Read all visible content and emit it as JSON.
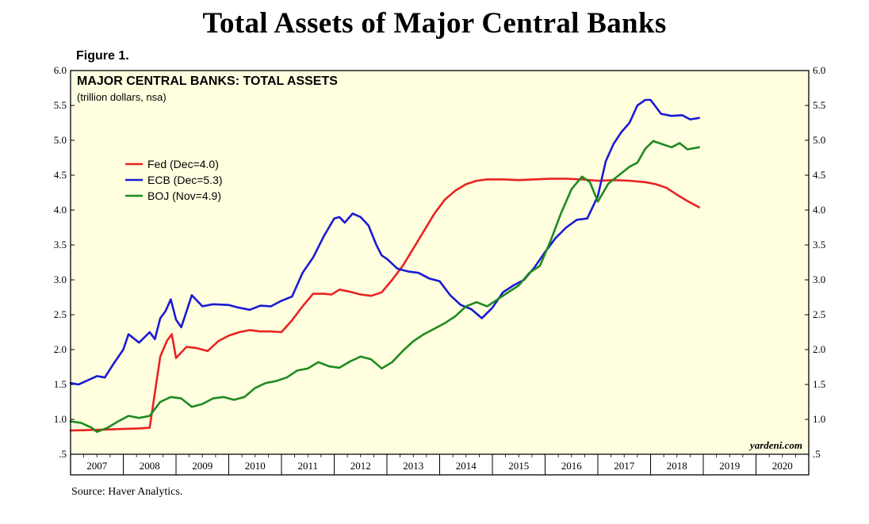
{
  "header": {
    "title": "Total Assets of Major Central Banks",
    "figure_label": "Figure 1."
  },
  "footer": {
    "source": "Source: Haver Analytics."
  },
  "chart_data": {
    "type": "line",
    "title": "MAJOR CENTRAL BANKS: TOTAL ASSETS",
    "subtitle": "(trillion dollars, nsa)",
    "watermark": "yardeni.com",
    "xlim": [
      2007.0,
      2021.0
    ],
    "ylim": [
      0.5,
      6.0
    ],
    "y_ticks": [
      0.5,
      1.0,
      1.5,
      2.0,
      2.5,
      3.0,
      3.5,
      4.0,
      4.5,
      5.0,
      5.5,
      6.0
    ],
    "y_tick_labels": [
      ".5",
      "1.0",
      "1.5",
      "2.0",
      "2.5",
      "3.0",
      "3.5",
      "4.0",
      "4.5",
      "5.0",
      "5.5",
      "6.0"
    ],
    "x_tick_labels": [
      "2007",
      "2008",
      "2009",
      "2010",
      "2011",
      "2012",
      "2013",
      "2014",
      "2015",
      "2016",
      "2017",
      "2018",
      "2019",
      "2020"
    ],
    "grid": false,
    "legend_placement": "upper-left",
    "plot_background": "#ffffe0",
    "series": [
      {
        "name": "Fed (Dec=4.0)",
        "color": "#e8231f",
        "x": [
          2007.0,
          2007.5,
          2007.9,
          2008.3,
          2008.5,
          2008.7,
          2008.83,
          2008.92,
          2009.0,
          2009.2,
          2009.4,
          2009.6,
          2009.8,
          2010.0,
          2010.2,
          2010.4,
          2010.6,
          2010.8,
          2011.0,
          2011.2,
          2011.4,
          2011.6,
          2011.8,
          2011.95,
          2012.1,
          2012.3,
          2012.5,
          2012.7,
          2012.9,
          2013.1,
          2013.3,
          2013.5,
          2013.7,
          2013.9,
          2014.1,
          2014.3,
          2014.5,
          2014.7,
          2014.9,
          2015.2,
          2015.5,
          2015.8,
          2016.1,
          2016.4,
          2016.7,
          2017.0,
          2017.3,
          2017.6,
          2017.9,
          2018.1,
          2018.3,
          2018.5,
          2018.7,
          2018.92
        ],
        "y": [
          0.84,
          0.85,
          0.86,
          0.87,
          0.88,
          1.9,
          2.13,
          2.22,
          1.88,
          2.04,
          2.02,
          1.98,
          2.12,
          2.2,
          2.25,
          2.28,
          2.26,
          2.26,
          2.25,
          2.42,
          2.62,
          2.8,
          2.8,
          2.79,
          2.86,
          2.83,
          2.79,
          2.77,
          2.82,
          3.0,
          3.2,
          3.45,
          3.7,
          3.95,
          4.15,
          4.28,
          4.37,
          4.42,
          4.44,
          4.44,
          4.43,
          4.44,
          4.45,
          4.45,
          4.44,
          4.42,
          4.43,
          4.42,
          4.4,
          4.37,
          4.32,
          4.22,
          4.13,
          4.04
        ]
      },
      {
        "name": "ECB (Dec=5.3)",
        "color": "#1a1ad4",
        "x": [
          2007.0,
          2007.15,
          2007.3,
          2007.5,
          2007.65,
          2007.8,
          2008.0,
          2008.1,
          2008.3,
          2008.5,
          2008.6,
          2008.7,
          2008.8,
          2008.9,
          2009.0,
          2009.1,
          2009.2,
          2009.3,
          2009.5,
          2009.7,
          2010.0,
          2010.2,
          2010.4,
          2010.6,
          2010.8,
          2011.0,
          2011.2,
          2011.4,
          2011.6,
          2011.8,
          2012.0,
          2012.1,
          2012.2,
          2012.35,
          2012.5,
          2012.65,
          2012.8,
          2012.9,
          2013.0,
          2013.2,
          2013.4,
          2013.6,
          2013.8,
          2014.0,
          2014.2,
          2014.4,
          2014.6,
          2014.8,
          2015.0,
          2015.2,
          2015.4,
          2015.6,
          2015.8,
          2016.0,
          2016.2,
          2016.4,
          2016.6,
          2016.8,
          2017.0,
          2017.15,
          2017.3,
          2017.45,
          2017.6,
          2017.75,
          2017.9,
          2018.0,
          2018.2,
          2018.4,
          2018.6,
          2018.75,
          2018.92
        ],
        "y": [
          1.52,
          1.5,
          1.55,
          1.62,
          1.6,
          1.78,
          2.0,
          2.22,
          2.1,
          2.25,
          2.15,
          2.45,
          2.55,
          2.72,
          2.43,
          2.32,
          2.55,
          2.78,
          2.62,
          2.65,
          2.64,
          2.6,
          2.57,
          2.63,
          2.62,
          2.7,
          2.76,
          3.1,
          3.32,
          3.62,
          3.88,
          3.9,
          3.82,
          3.95,
          3.9,
          3.78,
          3.5,
          3.35,
          3.3,
          3.16,
          3.12,
          3.1,
          3.02,
          2.98,
          2.78,
          2.64,
          2.58,
          2.45,
          2.6,
          2.82,
          2.92,
          3.0,
          3.18,
          3.4,
          3.6,
          3.75,
          3.86,
          3.88,
          4.2,
          4.7,
          4.95,
          5.12,
          5.25,
          5.5,
          5.58,
          5.58,
          5.38,
          5.35,
          5.36,
          5.3,
          5.32
        ]
      },
      {
        "name": "BOJ (Nov=4.9)",
        "color": "#1e8a1e",
        "x": [
          2007.0,
          2007.2,
          2007.4,
          2007.5,
          2007.7,
          2007.9,
          2008.1,
          2008.3,
          2008.5,
          2008.7,
          2008.9,
          2009.1,
          2009.3,
          2009.5,
          2009.7,
          2009.9,
          2010.1,
          2010.3,
          2010.5,
          2010.7,
          2010.9,
          2011.1,
          2011.3,
          2011.5,
          2011.7,
          2011.9,
          2012.1,
          2012.3,
          2012.5,
          2012.7,
          2012.9,
          2013.1,
          2013.3,
          2013.5,
          2013.7,
          2013.9,
          2014.1,
          2014.3,
          2014.5,
          2014.7,
          2014.9,
          2015.1,
          2015.3,
          2015.5,
          2015.7,
          2015.9,
          2016.1,
          2016.3,
          2016.5,
          2016.7,
          2016.85,
          2017.0,
          2017.2,
          2017.4,
          2017.6,
          2017.75,
          2017.9,
          2018.05,
          2018.2,
          2018.4,
          2018.55,
          2018.7,
          2018.92
        ],
        "y": [
          0.97,
          0.95,
          0.88,
          0.82,
          0.88,
          0.97,
          1.05,
          1.02,
          1.05,
          1.25,
          1.32,
          1.3,
          1.18,
          1.22,
          1.3,
          1.32,
          1.28,
          1.32,
          1.45,
          1.52,
          1.55,
          1.6,
          1.7,
          1.73,
          1.82,
          1.76,
          1.74,
          1.83,
          1.9,
          1.86,
          1.73,
          1.82,
          1.98,
          2.12,
          2.22,
          2.3,
          2.38,
          2.48,
          2.62,
          2.68,
          2.62,
          2.72,
          2.82,
          2.92,
          3.1,
          3.2,
          3.55,
          3.95,
          4.3,
          4.48,
          4.4,
          4.12,
          4.38,
          4.5,
          4.62,
          4.68,
          4.88,
          4.99,
          4.95,
          4.9,
          4.96,
          4.87,
          4.9
        ]
      }
    ]
  }
}
